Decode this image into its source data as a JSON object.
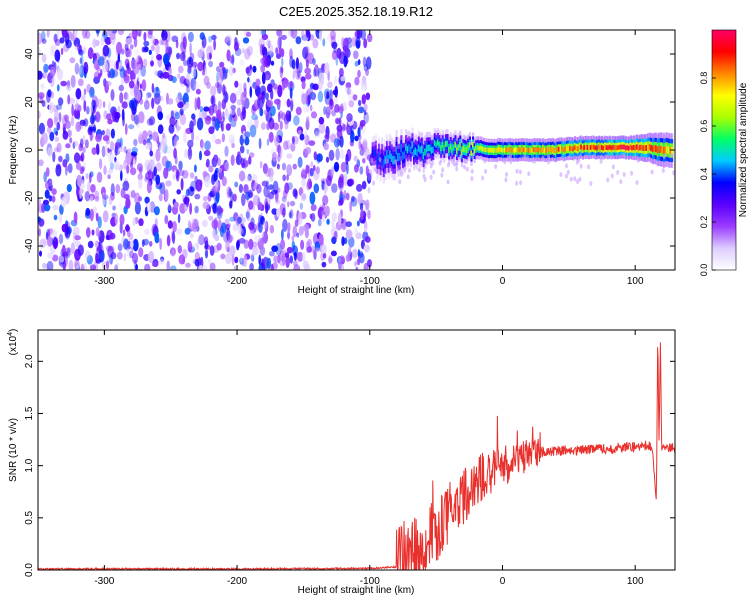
{
  "title": "C2E5.2025.352.18.19.R12",
  "chart_data": [
    {
      "type": "heatmap",
      "xlabel": "Height of straight line (km)",
      "ylabel": "Frequency (Hz)",
      "xlim": [
        -350,
        130
      ],
      "ylim": [
        -50,
        50
      ],
      "x_ticks": [
        -300,
        -200,
        -100,
        0,
        100
      ],
      "y_ticks": [
        -40,
        -20,
        0,
        20,
        40
      ],
      "colorbar": {
        "label": "Normalized spectral amplitude",
        "range": [
          0,
          1
        ],
        "ticks": [
          0.0,
          0.2,
          0.4,
          0.6,
          0.8
        ],
        "tick_labels": [
          "0.0",
          "0.2",
          "0.4",
          "0.6",
          "0.8"
        ],
        "colors": [
          "#ffffff",
          "#ddccff",
          "#9b3cff",
          "#5a00ff",
          "#0000ff",
          "#00ccff",
          "#00ff66",
          "#aaff00",
          "#ffff00",
          "#ff8800",
          "#ff0000",
          "#ff0066"
        ]
      },
      "regions": [
        {
          "description": "broadband noise",
          "x_range": [
            -350,
            -100
          ],
          "y_range": [
            -50,
            50
          ],
          "amplitude_range": [
            0.0,
            0.2
          ]
        },
        {
          "description": "narrow signal band",
          "x_range": [
            -100,
            130
          ],
          "center_frequency": 0,
          "amplitude_range": [
            0.3,
            1.0
          ]
        }
      ],
      "band_trace": [
        {
          "x": -98,
          "f": -2,
          "w": 6,
          "a": 0.35
        },
        {
          "x": -90,
          "f": -4,
          "w": 7,
          "a": 0.4
        },
        {
          "x": -80,
          "f": -2,
          "w": 7,
          "a": 0.45
        },
        {
          "x": -70,
          "f": 1,
          "w": 6,
          "a": 0.45
        },
        {
          "x": -60,
          "f": -1,
          "w": 6,
          "a": 0.5
        },
        {
          "x": -50,
          "f": 2,
          "w": 5,
          "a": 0.5
        },
        {
          "x": -40,
          "f": 1,
          "w": 5,
          "a": 0.55
        },
        {
          "x": -30,
          "f": 0,
          "w": 5,
          "a": 0.6
        },
        {
          "x": -20,
          "f": 1,
          "w": 4,
          "a": 0.65
        },
        {
          "x": -10,
          "f": 0,
          "w": 4,
          "a": 0.7
        },
        {
          "x": 0,
          "f": 0,
          "w": 4,
          "a": 0.75
        },
        {
          "x": 20,
          "f": 0,
          "w": 4,
          "a": 0.8
        },
        {
          "x": 40,
          "f": 0,
          "w": 4,
          "a": 0.82
        },
        {
          "x": 60,
          "f": 1,
          "w": 4,
          "a": 0.85
        },
        {
          "x": 80,
          "f": 1,
          "w": 4,
          "a": 0.9
        },
        {
          "x": 95,
          "f": 1,
          "w": 4,
          "a": 0.95
        },
        {
          "x": 110,
          "f": 1,
          "w": 5,
          "a": 0.85
        },
        {
          "x": 120,
          "f": 0,
          "w": 6,
          "a": 0.8
        },
        {
          "x": 128,
          "f": 0,
          "w": 6,
          "a": 0.75
        }
      ]
    },
    {
      "type": "line",
      "xlabel": "Height of straight line (km)",
      "ylabel": "SNR (10 * v/v)",
      "y_scale_label": "(x10",
      "y_scale_exponent": "4",
      "xlim": [
        -350,
        130
      ],
      "ylim": [
        0,
        2.3
      ],
      "x_ticks": [
        -300,
        -200,
        -100,
        0,
        100
      ],
      "y_ticks": [
        0.0,
        0.5,
        1.0,
        1.5,
        2.0
      ],
      "y_tick_labels": [
        "0.0",
        "0.5",
        "1.0",
        "1.5",
        "2.0"
      ],
      "series": [
        {
          "color": "#e8302c",
          "x": [
            -350,
            -300,
            -200,
            -100,
            -80,
            -70,
            -60,
            -55,
            -50,
            -45,
            -40,
            -35,
            -30,
            -25,
            -20,
            -15,
            -10,
            -5,
            0,
            5,
            10,
            15,
            20,
            25,
            30,
            40,
            50,
            60,
            70,
            80,
            90,
            100,
            105,
            110,
            113,
            116,
            117,
            118,
            119,
            120,
            122,
            125,
            130
          ],
          "y": [
            0.01,
            0.01,
            0.01,
            0.015,
            0.03,
            0.1,
            0.25,
            0.35,
            0.4,
            0.45,
            0.55,
            0.6,
            0.7,
            0.75,
            0.8,
            0.9,
            0.92,
            0.95,
            1.0,
            1.02,
            1.05,
            1.07,
            1.1,
            1.12,
            1.13,
            1.14,
            1.15,
            1.15,
            1.16,
            1.16,
            1.17,
            1.18,
            1.18,
            1.2,
            1.15,
            0.65,
            2.3,
            1.2,
            2.2,
            1.15,
            1.2,
            1.17,
            1.17
          ]
        }
      ]
    }
  ]
}
